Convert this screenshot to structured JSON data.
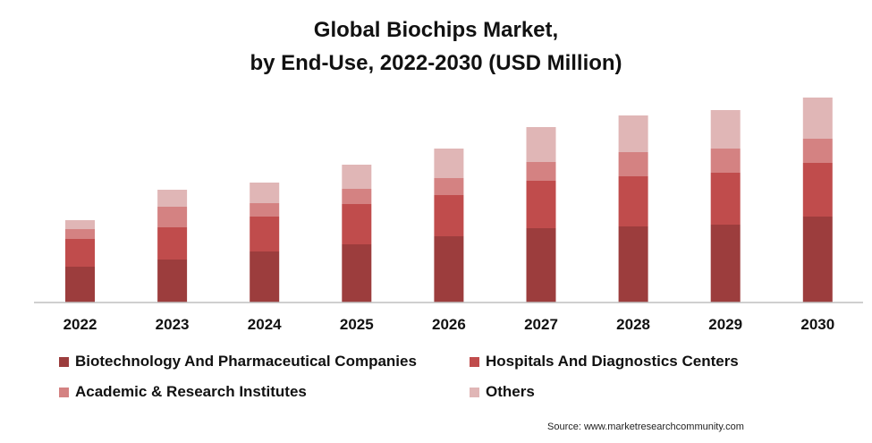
{
  "title_line1": "Global Biochips Market,",
  "title_line2": "by End-Use, 2022-2030 (USD Million)",
  "source": "Source: www.marketresearchcommunity.com",
  "chart_data": {
    "type": "bar",
    "stacked": true,
    "categories": [
      "2022",
      "2023",
      "2024",
      "2025",
      "2026",
      "2027",
      "2028",
      "2029",
      "2030"
    ],
    "series": [
      {
        "name": "Biotechnology And Pharmaceutical Companies",
        "color": "#9c3d3d",
        "values": [
          40,
          48,
          57,
          65,
          74,
          83,
          85,
          87,
          96
        ]
      },
      {
        "name": "Hospitals And Diagnostics Centers",
        "color": "#c04c4c",
        "values": [
          31,
          36,
          39,
          45,
          46,
          53,
          56,
          58,
          60
        ]
      },
      {
        "name": "Academic & Research Institutes",
        "color": "#d48282",
        "values": [
          11,
          23,
          15,
          17,
          19,
          21,
          27,
          27,
          27
        ]
      },
      {
        "name": "Others",
        "color": "#e0b6b6",
        "values": [
          10,
          19,
          23,
          27,
          33,
          39,
          41,
          43,
          46
        ]
      }
    ],
    "ylim": [
      0,
      250
    ],
    "grid": false,
    "legend_position": "bottom"
  }
}
